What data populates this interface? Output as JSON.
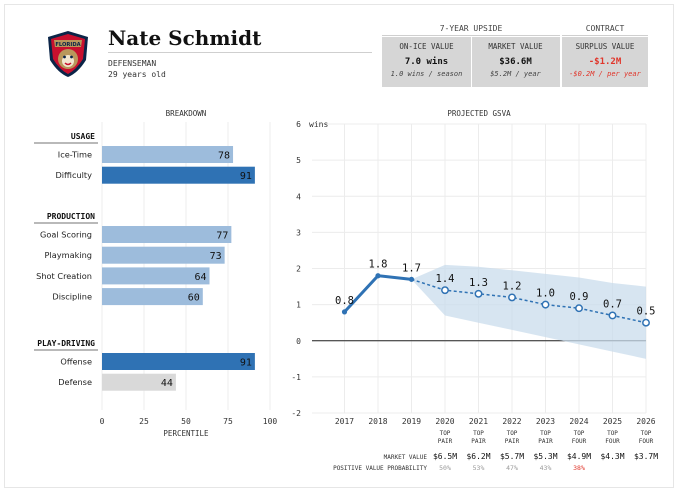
{
  "player": {
    "name": "Nate Schmidt",
    "position": "DEFENSEMAN",
    "age": "29 years old",
    "team_logo_icon": "florida-panthers-logo"
  },
  "upside": {
    "group_label": "7-YEAR UPSIDE",
    "on_ice": {
      "label": "ON-ICE VALUE",
      "value": "7.0 wins",
      "sub": "1.0 wins / season"
    },
    "market": {
      "label": "MARKET VALUE",
      "value": "$36.6M",
      "sub": "$5.2M / year"
    }
  },
  "contract": {
    "group_label": "CONTRACT",
    "surplus": {
      "label": "SURPLUS VALUE",
      "value": "-$1.2M",
      "sub": "-$0.2M / per year"
    }
  },
  "colors": {
    "bar_light": "#9dbcdc",
    "bar_dark": "#2f72b4",
    "bar_grey": "#d9d9d9",
    "line": "#2f72b4",
    "band": "#c9dcec",
    "negative": "#e0362b"
  },
  "breakdown": {
    "title": "BREAKDOWN",
    "xlabel": "PERCENTILE"
  },
  "projection": {
    "title": "PROJECTED GSVA",
    "unit_label": "wins",
    "market_value_label": "MARKET VALUE",
    "probability_label": "POSITIVE VALUE PROBABILITY"
  },
  "chart_data": [
    {
      "type": "bar",
      "orientation": "horizontal",
      "title": "BREAKDOWN",
      "xlabel": "PERCENTILE",
      "xlim": [
        0,
        100
      ],
      "xticks": [
        0,
        25,
        50,
        75,
        100
      ],
      "grid": true,
      "groups": [
        {
          "name": "USAGE",
          "bars": [
            {
              "label": "Ice-Time",
              "value": 78,
              "style": "light"
            },
            {
              "label": "Difficulty",
              "value": 91,
              "style": "dark"
            }
          ]
        },
        {
          "name": "PRODUCTION",
          "bars": [
            {
              "label": "Goal Scoring",
              "value": 77,
              "style": "light"
            },
            {
              "label": "Playmaking",
              "value": 73,
              "style": "light"
            },
            {
              "label": "Shot Creation",
              "value": 64,
              "style": "light"
            },
            {
              "label": "Discipline",
              "value": 60,
              "style": "light"
            }
          ]
        },
        {
          "name": "PLAY-DRIVING",
          "bars": [
            {
              "label": "Offense",
              "value": 91,
              "style": "dark"
            },
            {
              "label": "Defense",
              "value": 44,
              "style": "grey"
            }
          ]
        }
      ]
    },
    {
      "type": "line",
      "title": "PROJECTED GSVA",
      "ylabel": "wins",
      "ylim": [
        -2,
        6
      ],
      "yticks": [
        -2,
        -1,
        0,
        1,
        2,
        3,
        4,
        5,
        6
      ],
      "grid": true,
      "x": [
        "2017",
        "2018",
        "2019",
        "2020",
        "2021",
        "2022",
        "2023",
        "2024",
        "2025",
        "2026"
      ],
      "historical": {
        "x": [
          "2017",
          "2018",
          "2019"
        ],
        "y": [
          0.8,
          1.8,
          1.7
        ]
      },
      "projected": {
        "x": [
          "2019",
          "2020",
          "2021",
          "2022",
          "2023",
          "2024",
          "2025",
          "2026"
        ],
        "y": [
          1.7,
          1.4,
          1.3,
          1.2,
          1.0,
          0.9,
          0.7,
          0.5
        ]
      },
      "data_labels": [
        "0.8",
        "1.8",
        "1.7",
        "1.4",
        "1.3",
        "1.2",
        "1.0",
        "0.9",
        "0.7",
        "0.5"
      ],
      "band": {
        "x": [
          "2019",
          "2020",
          "2021",
          "2022",
          "2023",
          "2024",
          "2025",
          "2026"
        ],
        "upper": [
          1.7,
          2.1,
          2.05,
          1.95,
          1.85,
          1.75,
          1.6,
          1.5
        ],
        "lower": [
          1.7,
          0.7,
          0.5,
          0.3,
          0.1,
          -0.1,
          -0.3,
          -0.5
        ]
      },
      "tiers": [
        "",
        "",
        "",
        "TOP PAIR",
        "TOP PAIR",
        "TOP PAIR",
        "TOP PAIR",
        "TOP FOUR",
        "TOP FOUR",
        "TOP FOUR"
      ],
      "market_values": [
        "",
        "",
        "",
        "$6.5M",
        "$6.2M",
        "$5.7M",
        "$5.3M",
        "$4.9M",
        "$4.3M",
        "$3.7M"
      ],
      "positive_value_probability": [
        "",
        "",
        "",
        "50%",
        "53%",
        "47%",
        "43%",
        "38%",
        "",
        ""
      ],
      "probability_highlight_index": 7
    }
  ]
}
